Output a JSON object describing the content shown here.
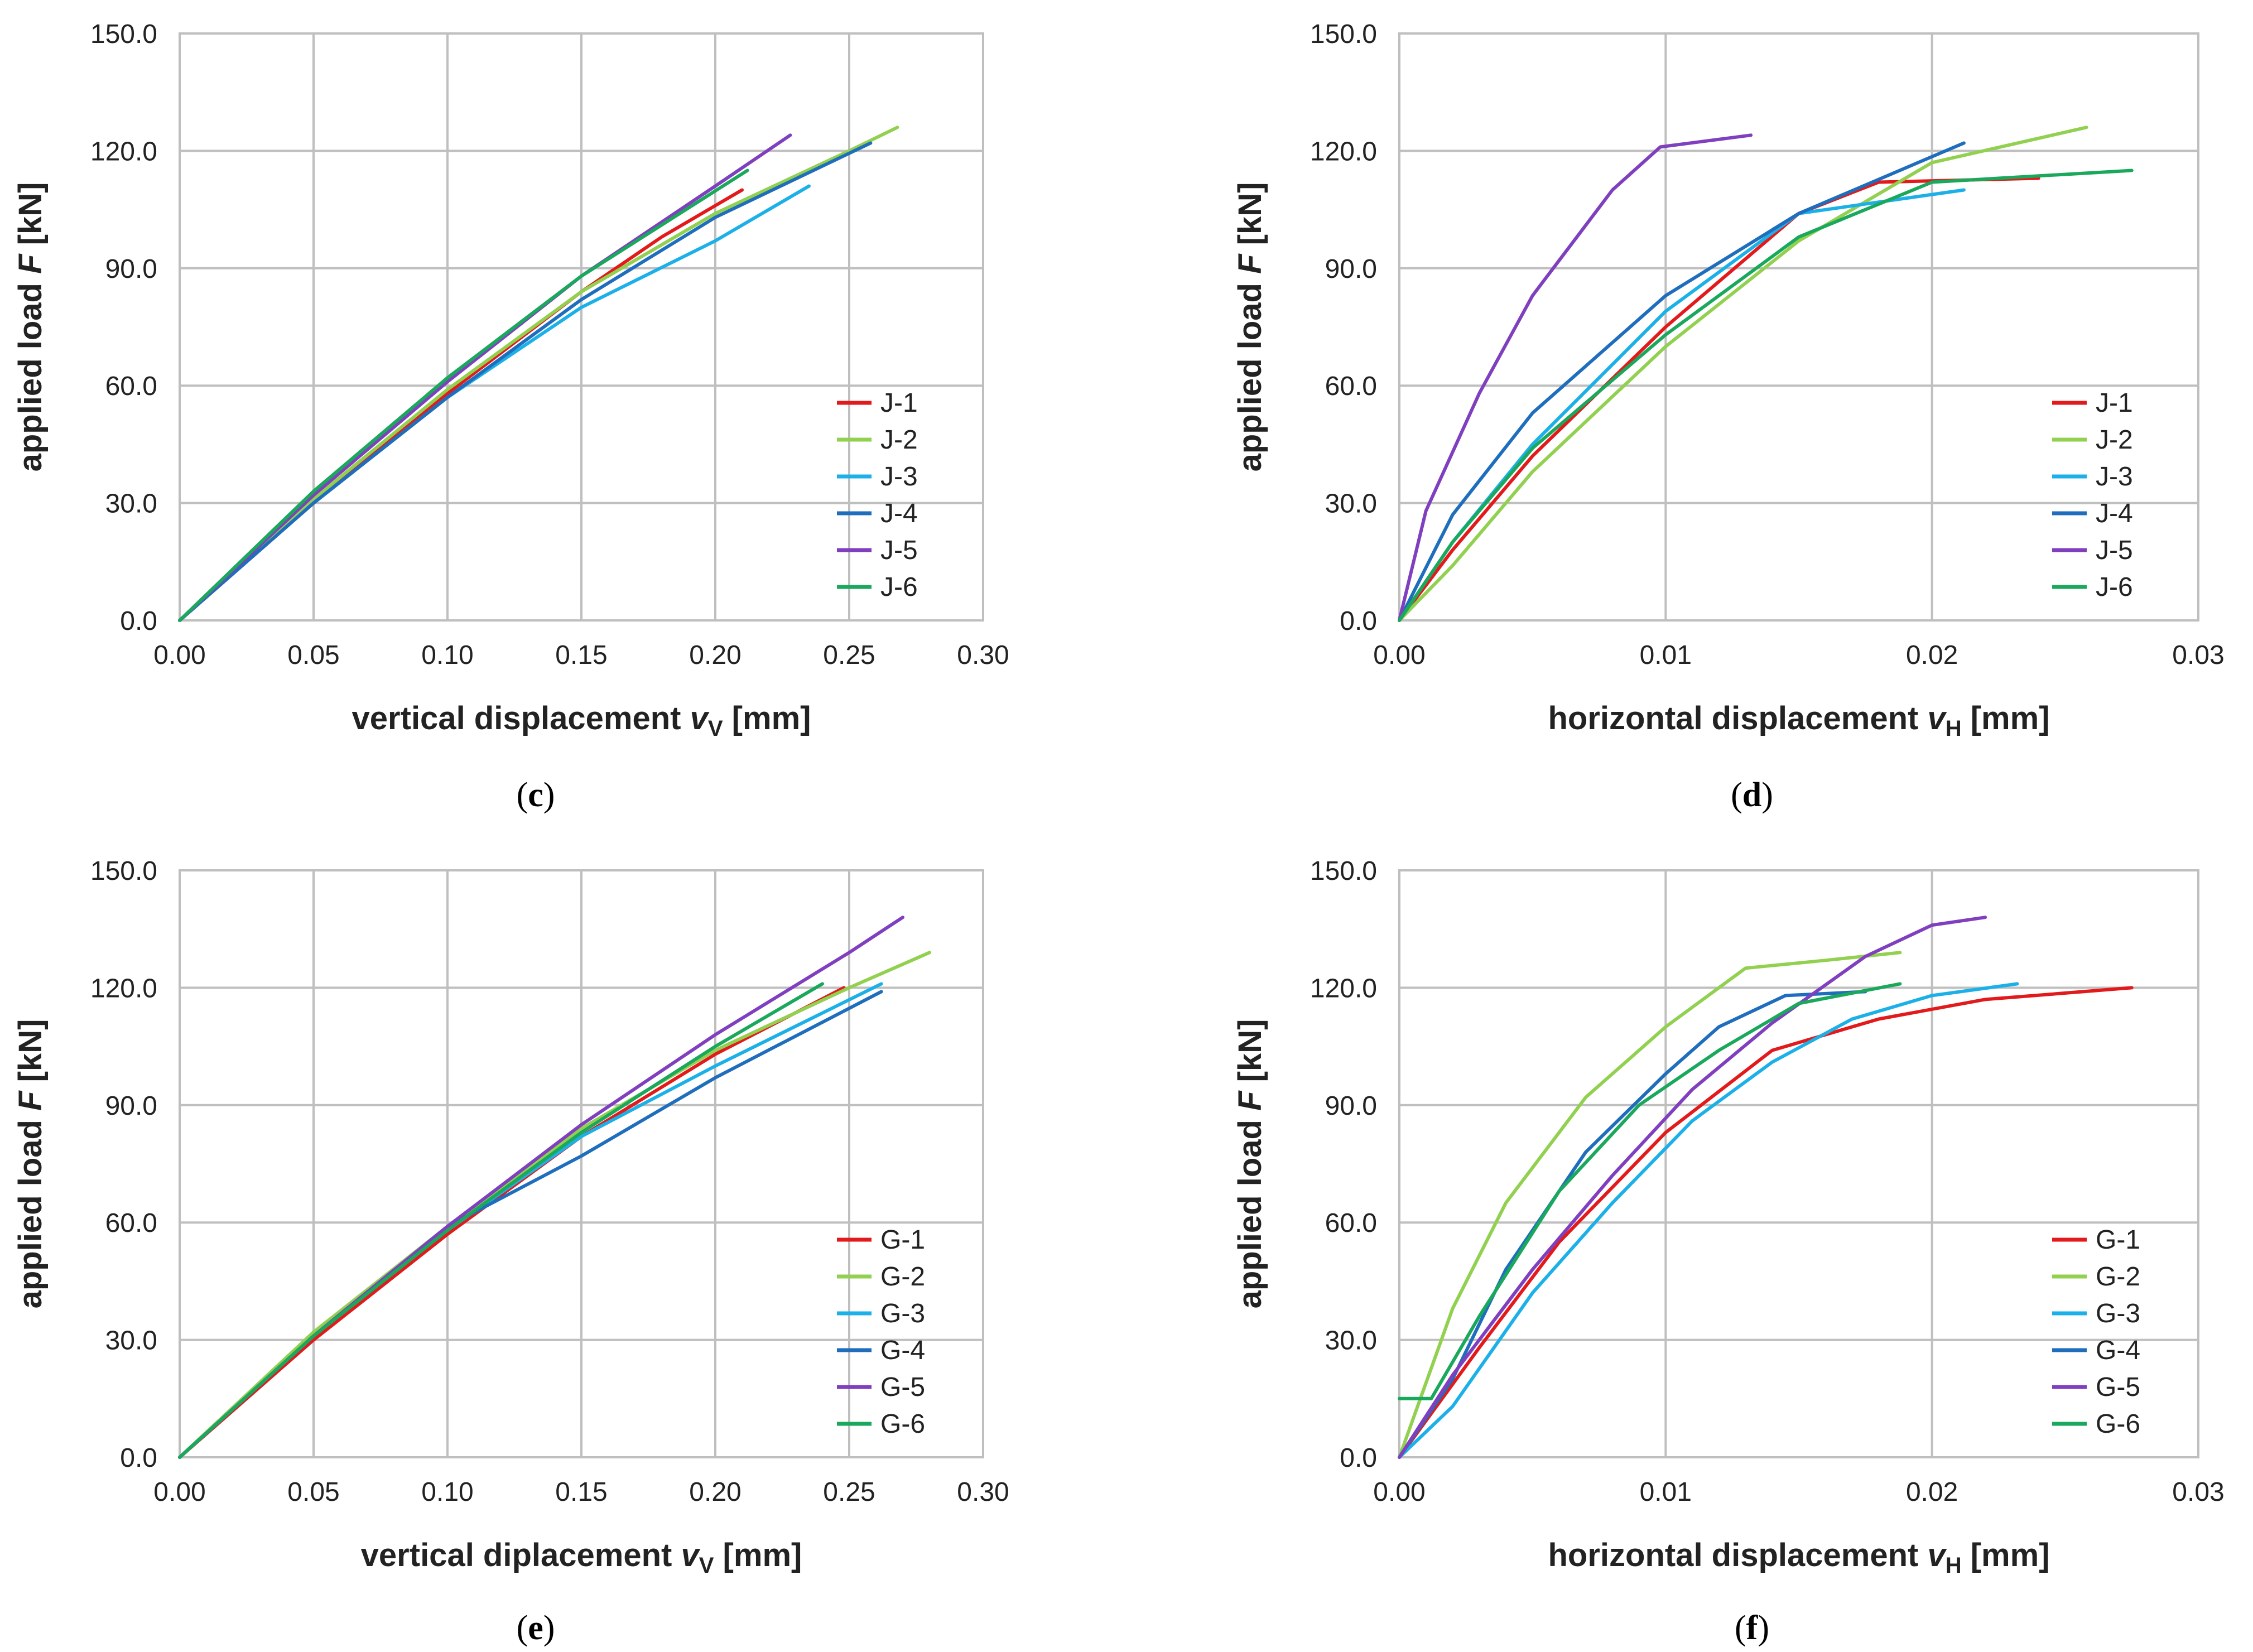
{
  "chart_data": [
    {
      "panel": "c",
      "type": "line",
      "xlim": [
        0,
        0.3
      ],
      "ylim": [
        0,
        150.0
      ],
      "x_ticks": [
        "0.00",
        "0.05",
        "0.10",
        "0.15",
        "0.20",
        "0.25",
        "0.30"
      ],
      "y_ticks": [
        "0.0",
        "30.0",
        "60.0",
        "90.0",
        "120.0",
        "150.0"
      ],
      "grid": true,
      "legend_placement": "bottom-right",
      "ylabel": {
        "pre": "applied load ",
        "var": "F",
        "sub": "",
        "post": " [kN]"
      },
      "xlabel": {
        "pre": "vertical displacement ",
        "var": "v",
        "sub": "V",
        "post": " [mm]"
      },
      "series": [
        {
          "name": "J-1",
          "color": "#e31a1c",
          "points": [
            [
              0,
              0
            ],
            [
              0.05,
              30
            ],
            [
              0.1,
              58
            ],
            [
              0.15,
              84
            ],
            [
              0.18,
              98
            ],
            [
              0.21,
              110
            ]
          ]
        },
        {
          "name": "J-2",
          "color": "#92d050",
          "points": [
            [
              0,
              0
            ],
            [
              0.05,
              31
            ],
            [
              0.1,
              59
            ],
            [
              0.15,
              84
            ],
            [
              0.2,
              104
            ],
            [
              0.25,
              120
            ],
            [
              0.268,
              126
            ]
          ]
        },
        {
          "name": "J-3",
          "color": "#1cb0e8",
          "points": [
            [
              0,
              0
            ],
            [
              0.05,
              30
            ],
            [
              0.1,
              57
            ],
            [
              0.15,
              80
            ],
            [
              0.2,
              97
            ],
            [
              0.235,
              111
            ]
          ]
        },
        {
          "name": "J-4",
          "color": "#1f6ebd",
          "points": [
            [
              0,
              0
            ],
            [
              0.05,
              30
            ],
            [
              0.1,
              57
            ],
            [
              0.15,
              82
            ],
            [
              0.2,
              103
            ],
            [
              0.258,
              122
            ]
          ]
        },
        {
          "name": "J-5",
          "color": "#7f3fbf",
          "points": [
            [
              0,
              0
            ],
            [
              0.05,
              32
            ],
            [
              0.1,
              61
            ],
            [
              0.15,
              88
            ],
            [
              0.2,
              111
            ],
            [
              0.228,
              124
            ]
          ]
        },
        {
          "name": "J-6",
          "color": "#1aa85c",
          "points": [
            [
              0,
              0
            ],
            [
              0.05,
              33
            ],
            [
              0.1,
              62
            ],
            [
              0.15,
              88
            ],
            [
              0.212,
              115
            ]
          ]
        }
      ]
    },
    {
      "panel": "d",
      "type": "line",
      "xlim": [
        0,
        0.03
      ],
      "ylim": [
        0,
        150.0
      ],
      "x_ticks": [
        "0.00",
        "0.01",
        "0.02",
        "0.03"
      ],
      "y_ticks": [
        "0.0",
        "30.0",
        "60.0",
        "90.0",
        "120.0",
        "150.0"
      ],
      "grid": true,
      "legend_placement": "bottom-right",
      "ylabel": {
        "pre": "applied load ",
        "var": "F",
        "sub": "",
        "post": " [kN]"
      },
      "xlabel": {
        "pre": "horizontal displacement ",
        "var": "v",
        "sub": "H",
        "post": " [mm]"
      },
      "series": [
        {
          "name": "J-1",
          "color": "#e31a1c",
          "points": [
            [
              0,
              0
            ],
            [
              0.002,
              18
            ],
            [
              0.005,
              42
            ],
            [
              0.01,
              75
            ],
            [
              0.015,
              104
            ],
            [
              0.018,
              112
            ],
            [
              0.024,
              113
            ]
          ]
        },
        {
          "name": "J-2",
          "color": "#92d050",
          "points": [
            [
              0,
              0
            ],
            [
              0.002,
              14
            ],
            [
              0.005,
              38
            ],
            [
              0.01,
              70
            ],
            [
              0.015,
              97
            ],
            [
              0.02,
              117
            ],
            [
              0.0258,
              126
            ]
          ]
        },
        {
          "name": "J-3",
          "color": "#1cb0e8",
          "points": [
            [
              0,
              0
            ],
            [
              0.002,
              20
            ],
            [
              0.005,
              45
            ],
            [
              0.01,
              79
            ],
            [
              0.015,
              104
            ],
            [
              0.0212,
              110
            ]
          ]
        },
        {
          "name": "J-4",
          "color": "#1f6ebd",
          "points": [
            [
              0,
              0
            ],
            [
              0.002,
              27
            ],
            [
              0.005,
              53
            ],
            [
              0.01,
              83
            ],
            [
              0.015,
              104
            ],
            [
              0.0212,
              122
            ]
          ]
        },
        {
          "name": "J-5",
          "color": "#7f3fbf",
          "points": [
            [
              0,
              0
            ],
            [
              0.001,
              28
            ],
            [
              0.003,
              58
            ],
            [
              0.005,
              83
            ],
            [
              0.008,
              110
            ],
            [
              0.0098,
              121
            ],
            [
              0.0132,
              124
            ]
          ]
        },
        {
          "name": "J-6",
          "color": "#1aa85c",
          "points": [
            [
              0,
              0
            ],
            [
              0.002,
              20
            ],
            [
              0.005,
              44
            ],
            [
              0.01,
              73
            ],
            [
              0.015,
              98
            ],
            [
              0.02,
              112
            ],
            [
              0.0275,
              115
            ]
          ]
        }
      ]
    },
    {
      "panel": "e",
      "type": "line",
      "xlim": [
        0,
        0.3
      ],
      "ylim": [
        0,
        150.0
      ],
      "x_ticks": [
        "0.00",
        "0.05",
        "0.10",
        "0.15",
        "0.20",
        "0.25",
        "0.30"
      ],
      "y_ticks": [
        "0.0",
        "30.0",
        "60.0",
        "90.0",
        "120.0",
        "150.0"
      ],
      "grid": true,
      "legend_placement": "bottom-right",
      "ylabel": {
        "pre": "applied load ",
        "var": "F",
        "sub": "",
        "post": " [kN]"
      },
      "xlabel": {
        "pre": "vertical diplacement ",
        "var": "v",
        "sub": "V",
        "post": " [mm]"
      },
      "series": [
        {
          "name": "G-1",
          "color": "#e31a1c",
          "points": [
            [
              0,
              0
            ],
            [
              0.05,
              30
            ],
            [
              0.1,
              57
            ],
            [
              0.15,
              82
            ],
            [
              0.2,
              103
            ],
            [
              0.248,
              120
            ]
          ]
        },
        {
          "name": "G-2",
          "color": "#92d050",
          "points": [
            [
              0,
              0
            ],
            [
              0.05,
              32
            ],
            [
              0.1,
              59
            ],
            [
              0.15,
              84
            ],
            [
              0.2,
              104
            ],
            [
              0.25,
              120
            ],
            [
              0.28,
              129
            ]
          ]
        },
        {
          "name": "G-3",
          "color": "#1cb0e8",
          "points": [
            [
              0,
              0
            ],
            [
              0.05,
              31
            ],
            [
              0.1,
              58
            ],
            [
              0.15,
              82
            ],
            [
              0.2,
              100
            ],
            [
              0.262,
              121
            ]
          ]
        },
        {
          "name": "G-4",
          "color": "#1f6ebd",
          "points": [
            [
              0,
              0
            ],
            [
              0.05,
              31
            ],
            [
              0.1,
              59
            ],
            [
              0.15,
              77
            ],
            [
              0.2,
              97
            ],
            [
              0.262,
              119
            ]
          ]
        },
        {
          "name": "G-5",
          "color": "#7f3fbf",
          "points": [
            [
              0,
              0
            ],
            [
              0.05,
              31
            ],
            [
              0.1,
              59
            ],
            [
              0.15,
              85
            ],
            [
              0.2,
              108
            ],
            [
              0.25,
              129
            ],
            [
              0.27,
              138
            ]
          ]
        },
        {
          "name": "G-6",
          "color": "#1aa85c",
          "points": [
            [
              0,
              0
            ],
            [
              0.05,
              31
            ],
            [
              0.1,
              58
            ],
            [
              0.15,
              83
            ],
            [
              0.2,
              105
            ],
            [
              0.24,
              121
            ]
          ]
        }
      ]
    },
    {
      "panel": "f",
      "type": "line",
      "xlim": [
        0,
        0.03
      ],
      "ylim": [
        0,
        150.0
      ],
      "x_ticks": [
        "0.00",
        "0.01",
        "0.02",
        "0.03"
      ],
      "y_ticks": [
        "0.0",
        "30.0",
        "60.0",
        "90.0",
        "120.0",
        "150.0"
      ],
      "grid": true,
      "legend_placement": "bottom-right",
      "ylabel": {
        "pre": "applied load ",
        "var": "F",
        "sub": "",
        "post": " [kN]"
      },
      "xlabel": {
        "pre": "horizontal displacement ",
        "var": "v",
        "sub": "H",
        "post": " [mm]"
      },
      "series": [
        {
          "name": "G-1",
          "color": "#e31a1c",
          "points": [
            [
              0,
              0
            ],
            [
              0.003,
              28
            ],
            [
              0.006,
              55
            ],
            [
              0.01,
              83
            ],
            [
              0.014,
              104
            ],
            [
              0.018,
              112
            ],
            [
              0.022,
              117
            ],
            [
              0.0275,
              120
            ]
          ]
        },
        {
          "name": "G-2",
          "color": "#92d050",
          "points": [
            [
              0,
              0
            ],
            [
              0.002,
              38
            ],
            [
              0.004,
              65
            ],
            [
              0.007,
              92
            ],
            [
              0.01,
              110
            ],
            [
              0.013,
              125
            ],
            [
              0.016,
              127
            ],
            [
              0.0188,
              129
            ]
          ]
        },
        {
          "name": "G-3",
          "color": "#1cb0e8",
          "points": [
            [
              0,
              0
            ],
            [
              0.002,
              13
            ],
            [
              0.005,
              42
            ],
            [
              0.008,
              65
            ],
            [
              0.011,
              86
            ],
            [
              0.014,
              101
            ],
            [
              0.017,
              112
            ],
            [
              0.02,
              118
            ],
            [
              0.0232,
              121
            ]
          ]
        },
        {
          "name": "G-4",
          "color": "#1f6ebd",
          "points": [
            [
              0,
              0
            ],
            [
              0.002,
              20
            ],
            [
              0.004,
              48
            ],
            [
              0.007,
              78
            ],
            [
              0.01,
              98
            ],
            [
              0.012,
              110
            ],
            [
              0.0145,
              118
            ],
            [
              0.0175,
              119
            ]
          ]
        },
        {
          "name": "G-5",
          "color": "#7f3fbf",
          "points": [
            [
              0,
              0
            ],
            [
              0.002,
              21
            ],
            [
              0.005,
              48
            ],
            [
              0.008,
              72
            ],
            [
              0.011,
              94
            ],
            [
              0.014,
              111
            ],
            [
              0.0175,
              128
            ],
            [
              0.02,
              136
            ],
            [
              0.022,
              138
            ]
          ]
        },
        {
          "name": "G-6",
          "color": "#1aa85c",
          "points": [
            [
              0,
              15
            ],
            [
              0.0012,
              15
            ],
            [
              0.003,
              36
            ],
            [
              0.006,
              68
            ],
            [
              0.009,
              90
            ],
            [
              0.012,
              104
            ],
            [
              0.015,
              116
            ],
            [
              0.0188,
              121
            ]
          ]
        }
      ]
    }
  ]
}
